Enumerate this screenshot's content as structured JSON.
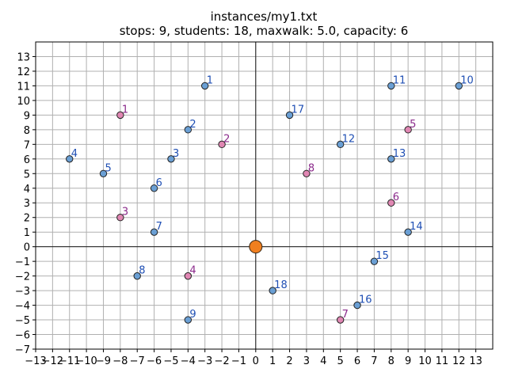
{
  "chart_data": {
    "type": "scatter",
    "title_line1": "instances/my1.txt",
    "title_line2": "stops: 9, students: 18, maxwalk: 5.0, capacity: 6",
    "xlabel": "",
    "ylabel": "",
    "xlim": [
      -13,
      14
    ],
    "ylim": [
      -7,
      14
    ],
    "xticks": [
      -13,
      -12,
      -11,
      -10,
      -9,
      -8,
      -7,
      -6,
      -5,
      -4,
      -3,
      -2,
      -1,
      0,
      1,
      2,
      3,
      4,
      5,
      6,
      7,
      8,
      9,
      10,
      11,
      12,
      13
    ],
    "yticks": [
      -7,
      -6,
      -5,
      -4,
      -3,
      -2,
      -1,
      0,
      1,
      2,
      3,
      4,
      5,
      6,
      7,
      8,
      9,
      10,
      11,
      12,
      13
    ],
    "grid": true,
    "colors": {
      "student_fill": "#6a9fd4",
      "student_label": "#1f4fb4",
      "stop_fill": "#e087b3",
      "stop_label": "#8b2a8b",
      "depot_fill": "#f07f1f",
      "grid": "#b0b0b0",
      "axis_zero": "#000000"
    },
    "depot": {
      "x": 0,
      "y": 0
    },
    "series": [
      {
        "group": "students",
        "points": [
          {
            "label": "1",
            "x": -3,
            "y": 11
          },
          {
            "label": "2",
            "x": -4,
            "y": 8
          },
          {
            "label": "3",
            "x": -5,
            "y": 6
          },
          {
            "label": "4",
            "x": -11,
            "y": 6
          },
          {
            "label": "5",
            "x": -9,
            "y": 5
          },
          {
            "label": "6",
            "x": -6,
            "y": 4
          },
          {
            "label": "7",
            "x": -6,
            "y": 1
          },
          {
            "label": "8",
            "x": -7,
            "y": -2
          },
          {
            "label": "9",
            "x": -4,
            "y": -5
          },
          {
            "label": "10",
            "x": 12,
            "y": 11
          },
          {
            "label": "11",
            "x": 8,
            "y": 11
          },
          {
            "label": "12",
            "x": 5,
            "y": 7
          },
          {
            "label": "13",
            "x": 8,
            "y": 6
          },
          {
            "label": "14",
            "x": 9,
            "y": 1
          },
          {
            "label": "15",
            "x": 7,
            "y": -1
          },
          {
            "label": "16",
            "x": 6,
            "y": -4
          },
          {
            "label": "17",
            "x": 2,
            "y": 9
          },
          {
            "label": "18",
            "x": 1,
            "y": -3
          }
        ]
      },
      {
        "group": "stops",
        "points": [
          {
            "label": "1",
            "x": -8,
            "y": 9
          },
          {
            "label": "2",
            "x": -2,
            "y": 7
          },
          {
            "label": "3",
            "x": -8,
            "y": 2
          },
          {
            "label": "4",
            "x": -4,
            "y": -2
          },
          {
            "label": "5",
            "x": 9,
            "y": 8
          },
          {
            "label": "6",
            "x": 8,
            "y": 3
          },
          {
            "label": "7",
            "x": 5,
            "y": -5
          },
          {
            "label": "8",
            "x": 3,
            "y": 5
          }
        ]
      }
    ]
  }
}
